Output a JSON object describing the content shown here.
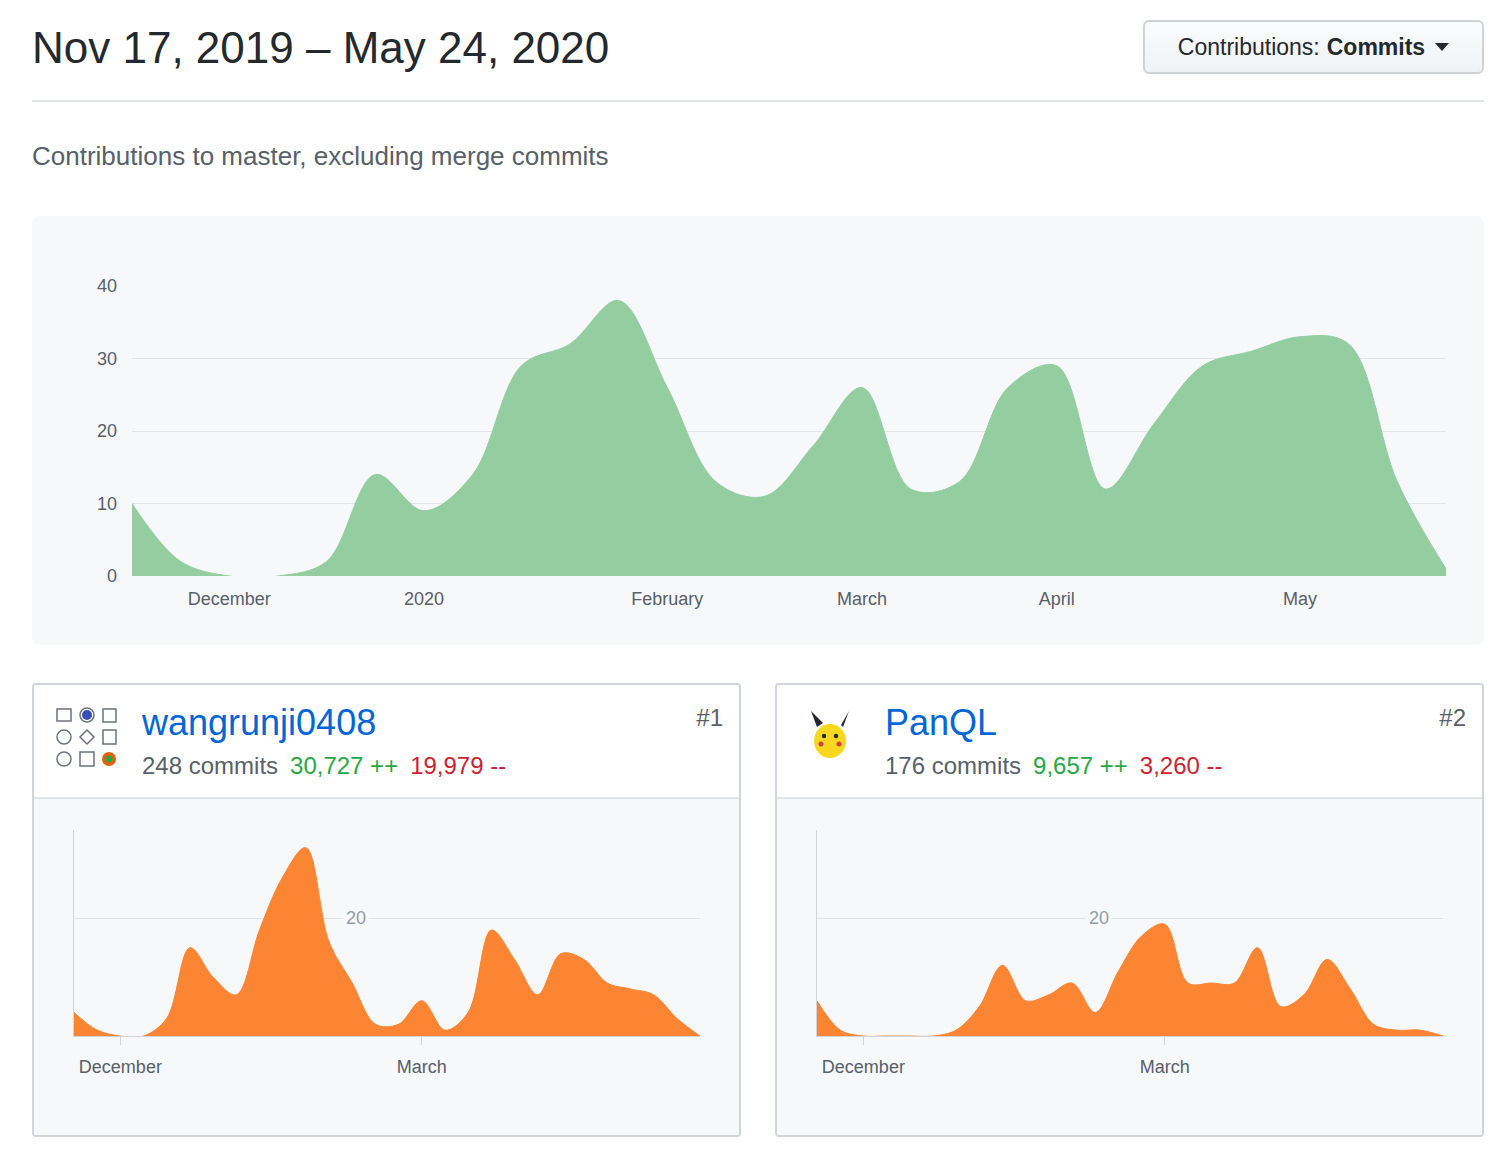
{
  "header": {
    "title": "Nov 17, 2019 – May 24, 2020",
    "filter": {
      "label": "Contributions:",
      "value": "Commits"
    },
    "subtitle": "Contributions to master, excluding merge commits"
  },
  "contributors": [
    {
      "name": "wangrunji0408",
      "rank": "#1",
      "commits": "248 commits",
      "additions": "30,727 ++",
      "deletions": "19,979 --"
    },
    {
      "name": "PanQL",
      "rank": "#2",
      "commits": "176 commits",
      "additions": "9,657 ++",
      "deletions": "3,260 --"
    }
  ],
  "chart_data": [
    {
      "type": "area",
      "line_style": "spline",
      "color": "#94cea0",
      "grid": true,
      "categories": [
        null,
        null,
        "December",
        null,
        null,
        null,
        "2020",
        null,
        null,
        null,
        null,
        "February",
        null,
        null,
        null,
        "March",
        null,
        null,
        null,
        "April",
        null,
        null,
        null,
        null,
        "May",
        null,
        null,
        null
      ],
      "values": [
        10,
        2,
        0,
        0,
        2,
        14,
        9,
        14,
        29,
        32,
        38,
        26,
        13,
        11,
        18,
        26,
        12,
        13,
        26,
        29,
        12,
        21,
        29,
        31,
        33,
        32,
        13,
        1
      ],
      "ylim": [
        0,
        40
      ],
      "yticks": [
        0,
        10,
        20,
        30,
        40
      ]
    },
    {
      "type": "area",
      "line_style": "spline",
      "color": "#fb8532",
      "grid": true,
      "categories": [
        null,
        null,
        "December",
        null,
        null,
        null,
        null,
        null,
        null,
        null,
        null,
        null,
        null,
        null,
        null,
        "March",
        null,
        null,
        null,
        null,
        null,
        null,
        null,
        null,
        null,
        null,
        null,
        null
      ],
      "values": [
        4,
        1,
        0,
        0,
        3,
        15,
        10,
        7,
        18,
        27,
        32,
        16,
        9,
        2,
        2,
        6,
        1,
        4,
        18,
        13,
        7,
        14,
        13,
        9,
        8,
        7,
        3,
        0
      ],
      "ylim": [
        0,
        35
      ],
      "yticks": [
        20
      ]
    },
    {
      "type": "area",
      "line_style": "spline",
      "color": "#fb8532",
      "grid": true,
      "categories": [
        null,
        null,
        "December",
        null,
        null,
        null,
        null,
        null,
        null,
        null,
        null,
        null,
        null,
        null,
        null,
        "March",
        null,
        null,
        null,
        null,
        null,
        null,
        null,
        null,
        null,
        null,
        null,
        null
      ],
      "values": [
        6,
        1,
        0,
        0,
        0,
        0,
        1,
        5,
        12,
        6,
        7,
        9,
        4,
        11,
        17,
        19,
        9,
        9,
        9,
        15,
        5,
        7,
        13,
        8,
        2,
        1,
        1,
        0
      ],
      "ylim": [
        0,
        35
      ],
      "yticks": [
        20
      ]
    }
  ]
}
